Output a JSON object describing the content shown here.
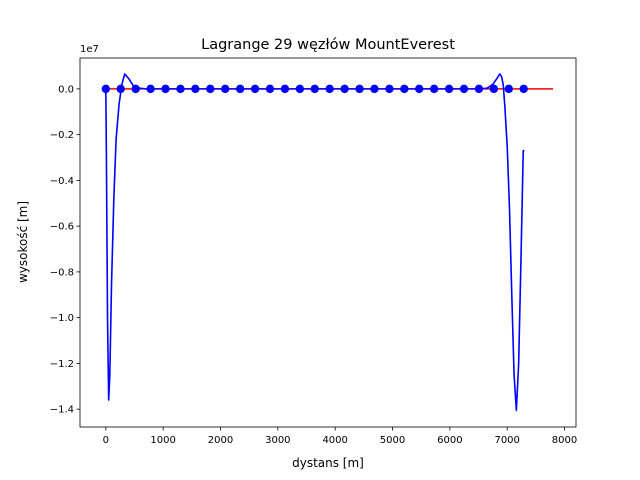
{
  "chart_data": {
    "type": "line",
    "title": "Lagrange 29 węzłów MountEverest",
    "xlabel": "dystans [m]",
    "ylabel": "wysokość [m]",
    "y_offset_label": "1e7",
    "y_scale": 10000000,
    "xlim": [
      -450,
      8200
    ],
    "ylim": [
      -14780000,
      1350000
    ],
    "x_ticks": [
      0,
      1000,
      2000,
      3000,
      4000,
      5000,
      6000,
      7000,
      8000
    ],
    "x_tick_labels": [
      "0",
      "1000",
      "2000",
      "3000",
      "4000",
      "5000",
      "6000",
      "7000",
      "8000"
    ],
    "y_ticks": [
      0,
      -2000000,
      -4000000,
      -6000000,
      -8000000,
      -10000000,
      -12000000,
      -14000000
    ],
    "y_tick_labels": [
      "0.0",
      "−0.2",
      "−0.4",
      "−0.6",
      "−0.8",
      "−1.0",
      "−1.2",
      "−1.4"
    ],
    "grid": false,
    "legend": "none",
    "series": [
      {
        "role": "reference-profile",
        "color": "#ff0000",
        "x": [
          0,
          7800
        ],
        "y": [
          0,
          0
        ]
      },
      {
        "role": "interpolation",
        "color": "#0000ff",
        "x": [
          0,
          10,
          30,
          50,
          70,
          100,
          140,
          180,
          230,
          280,
          330,
          400,
          500,
          700,
          1000,
          2000,
          3000,
          4000,
          5000,
          6000,
          6500,
          6650,
          6750,
          6820,
          6870,
          6900,
          6930,
          6960,
          7000,
          7040,
          7080,
          7120,
          7160,
          7200,
          7240,
          7280,
          7300
        ],
        "y": [
          0,
          -2800000,
          -10000000,
          -13600000,
          -12500000,
          -8500000,
          -4800000,
          -2200000,
          -700000,
          200000,
          650000,
          450000,
          60000,
          0,
          0,
          0,
          0,
          0,
          0,
          0,
          0,
          30000,
          200000,
          450000,
          650000,
          550000,
          200000,
          -800000,
          -2500000,
          -5200000,
          -9000000,
          -12500000,
          -14050000,
          -12000000,
          -7500000,
          -2700000,
          -2700000
        ]
      },
      {
        "role": "nodes",
        "color": "#0000ff",
        "x": [
          0,
          260,
          521,
          781,
          1041,
          1302,
          1562,
          1822,
          2082,
          2343,
          2603,
          2863,
          3124,
          3384,
          3644,
          3904,
          4165,
          4425,
          4685,
          4946,
          5206,
          5466,
          5726,
          5987,
          6247,
          6507,
          6768,
          7028,
          7288
        ],
        "y": [
          0,
          0,
          0,
          0,
          0,
          0,
          0,
          0,
          0,
          0,
          0,
          0,
          0,
          0,
          0,
          0,
          0,
          0,
          0,
          0,
          0,
          0,
          0,
          0,
          0,
          0,
          0,
          0,
          0
        ]
      }
    ]
  }
}
